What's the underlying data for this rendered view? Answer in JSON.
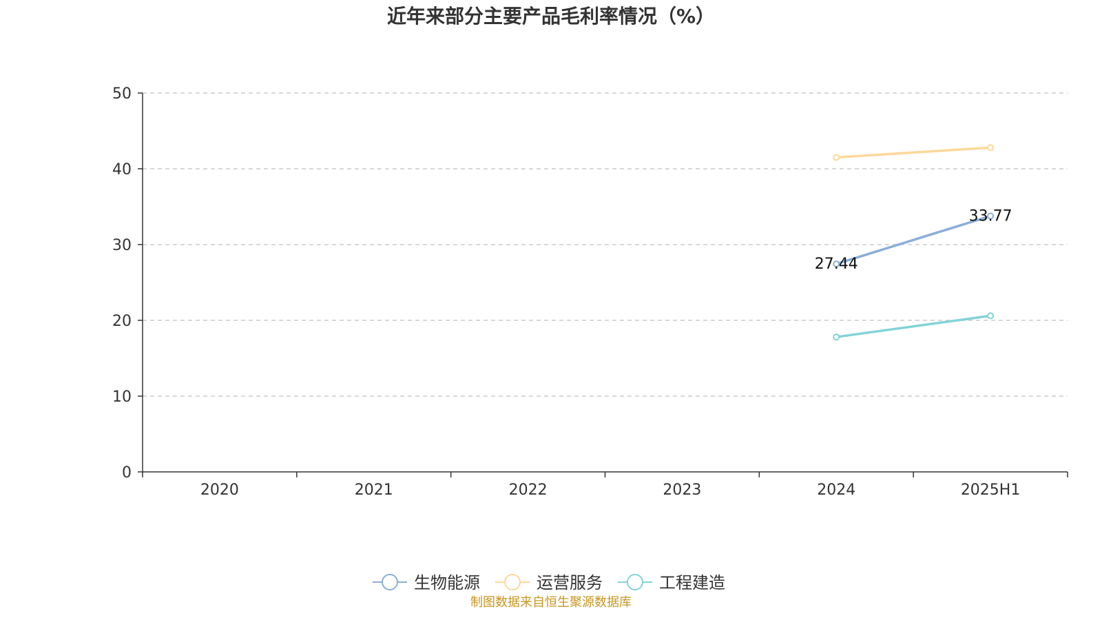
{
  "chart_data": {
    "type": "line",
    "title": "近年来部分主要产品毛利率情况（%）",
    "xlabel": "",
    "ylabel": "",
    "categories": [
      "2020",
      "2021",
      "2022",
      "2023",
      "2024",
      "2025H1"
    ],
    "ylim": [
      0,
      50
    ],
    "yticks": [
      0,
      10,
      20,
      30,
      40,
      50
    ],
    "grid": true,
    "legend_position": "bottom-center",
    "series": [
      {
        "name": "生物能源",
        "color": "#8aaed8",
        "values": [
          null,
          null,
          null,
          null,
          27.44,
          33.77
        ],
        "data_labels": [
          "",
          "",
          "",
          "",
          "27.44",
          "33.77"
        ]
      },
      {
        "name": "运营服务",
        "color": "#fdd89a",
        "values": [
          null,
          null,
          null,
          null,
          41.5,
          42.8
        ],
        "data_labels": [
          "",
          "",
          "",
          "",
          "",
          ""
        ]
      },
      {
        "name": "工程建造",
        "color": "#83d3d6",
        "values": [
          null,
          null,
          null,
          null,
          17.8,
          20.6
        ],
        "data_labels": [
          "",
          "",
          "",
          "",
          "",
          ""
        ]
      }
    ]
  },
  "source_note": "制图数据来自恒生聚源数据库"
}
